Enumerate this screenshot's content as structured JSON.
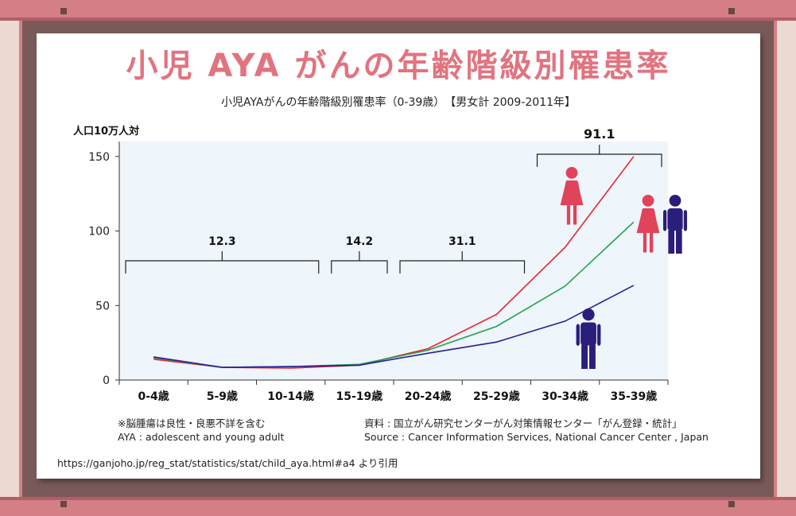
{
  "title": "小児 AYA がんの年齢階級別罹患率",
  "chart_data": {
    "type": "line",
    "title": "小児AYAがんの年齢階級別罹患率（0-39歳）　【男女計 2009-2011年】",
    "ylabel": "人口10万人対",
    "xlabel": "",
    "ylim": [
      0,
      160
    ],
    "yticks": [
      0,
      50,
      100,
      150
    ],
    "grid": false,
    "categories": [
      "0-4歳",
      "5-9歳",
      "10-14歳",
      "15-19歳",
      "20-24歳",
      "25-29歳",
      "30-34歳",
      "35-39歳"
    ],
    "series": [
      {
        "color": "#e8242e",
        "values": [
          14,
          8.5,
          8,
          10,
          21,
          44,
          89,
          150
        ]
      },
      {
        "color": "#22a04c",
        "values": [
          15,
          8.5,
          9,
          10.5,
          20,
          36,
          63,
          106
        ]
      },
      {
        "color": "#2a1e9b",
        "values": [
          15.5,
          8.5,
          9,
          10,
          18,
          25.5,
          39.5,
          63.5
        ]
      }
    ],
    "annotations": [
      {
        "label": "12.3",
        "range": [
          "0-4歳",
          "10-14歳"
        ]
      },
      {
        "label": "14.2",
        "range": [
          "15-19歳",
          "15-19歳"
        ]
      },
      {
        "label": "31.1",
        "range": [
          "20-24歳",
          "25-29歳"
        ]
      },
      {
        "label": "91.1",
        "range": [
          "30-34歳",
          "35-39歳"
        ]
      }
    ]
  },
  "icons": [
    {
      "name": "female-icon",
      "color": "#e0435a"
    },
    {
      "name": "female-icon",
      "color": "#e0435a"
    },
    {
      "name": "male-icon",
      "color": "#2a1e7a"
    },
    {
      "name": "male-icon",
      "color": "#2a1e7a"
    }
  ],
  "notes": {
    "benign": "※脳腫瘍は良性・良悪不詳を含む",
    "aya": "AYA : adolescent and young adult",
    "source_ja": "資料 : 国立がん研究センターがん対策情報センター「がん登録・統計」",
    "source_en": "Source : Cancer Information Services, National Cancer Center , Japan",
    "url": "https://ganjoho.jp/reg_stat/statistics/stat/child_aya.html#a4 より引用"
  },
  "colors": {
    "frame": "#d47f86",
    "title": "#e2737f",
    "plot_bg": "#eef5fb"
  }
}
